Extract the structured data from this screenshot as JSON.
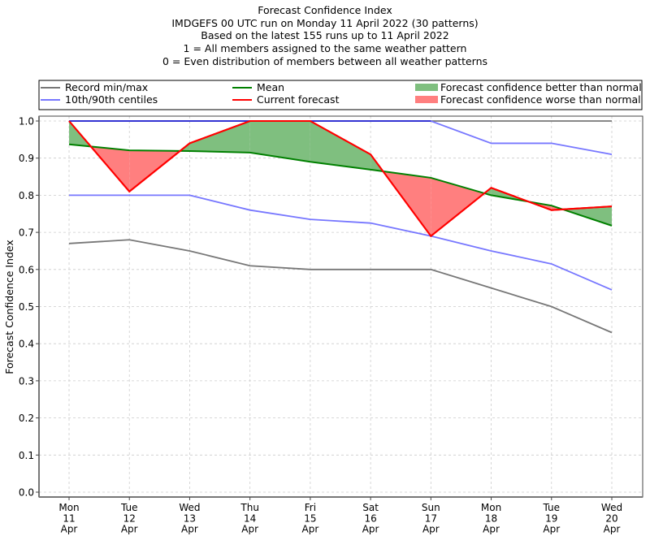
{
  "chart_data": {
    "type": "line",
    "title_lines": [
      "Forecast Confidence Index",
      "IMDGEFS 00 UTC run on Monday 11 April 2022 (30 patterns)",
      "Based on the latest 155 runs up to 11 April 2022",
      "1 = All members assigned to the same weather pattern",
      "0 = Even distribution of members between all weather patterns"
    ],
    "xlabel": "",
    "ylabel": "Forecast Confidence Index",
    "ylim": [
      0.0,
      1.0
    ],
    "yticks": [
      "0.0",
      "0.1",
      "0.2",
      "0.3",
      "0.4",
      "0.5",
      "0.6",
      "0.7",
      "0.8",
      "0.9",
      "1.0"
    ],
    "grid": true,
    "legend_position": "top (above plot, 3 columns)",
    "categories": [
      {
        "day": "Mon",
        "date": "11",
        "month": "Apr"
      },
      {
        "day": "Tue",
        "date": "12",
        "month": "Apr"
      },
      {
        "day": "Wed",
        "date": "13",
        "month": "Apr"
      },
      {
        "day": "Thu",
        "date": "14",
        "month": "Apr"
      },
      {
        "day": "Fri",
        "date": "15",
        "month": "Apr"
      },
      {
        "day": "Sat",
        "date": "16",
        "month": "Apr"
      },
      {
        "day": "Sun",
        "date": "17",
        "month": "Apr"
      },
      {
        "day": "Mon",
        "date": "18",
        "month": "Apr"
      },
      {
        "day": "Tue",
        "date": "19",
        "month": "Apr"
      },
      {
        "day": "Wed",
        "date": "20",
        "month": "Apr"
      }
    ],
    "series": [
      {
        "name": "Record max",
        "legend": "Record min/max",
        "color": "#777777",
        "values": [
          1.0,
          1.0,
          1.0,
          1.0,
          1.0,
          1.0,
          1.0,
          1.0,
          1.0,
          1.0
        ]
      },
      {
        "name": "Record min",
        "legend": "Record min/max",
        "color": "#777777",
        "values": [
          0.67,
          0.68,
          0.65,
          0.61,
          0.6,
          0.6,
          0.6,
          0.55,
          0.5,
          0.43
        ]
      },
      {
        "name": "90th centile",
        "legend": "10th/90th centiles",
        "color": "#7777ff",
        "values": [
          1.0,
          1.0,
          1.0,
          1.0,
          1.0,
          1.0,
          1.0,
          0.94,
          0.94,
          0.91
        ]
      },
      {
        "name": "10th centile",
        "legend": "10th/90th centiles",
        "color": "#7777ff",
        "values": [
          0.8,
          0.8,
          0.8,
          0.76,
          0.735,
          0.725,
          0.69,
          0.65,
          0.615,
          0.545
        ]
      },
      {
        "name": "Mean",
        "legend": "Mean",
        "color": "#008000",
        "values": [
          0.937,
          0.921,
          0.919,
          0.915,
          0.89,
          0.869,
          0.847,
          0.8,
          0.772,
          0.718
        ]
      },
      {
        "name": "Current forecast",
        "legend": "Current forecast",
        "color": "#ff0000",
        "values": [
          1.0,
          0.81,
          0.94,
          1.0,
          1.0,
          0.91,
          0.69,
          0.82,
          0.76,
          0.77
        ]
      }
    ],
    "legend": [
      {
        "label": "Record min/max",
        "kind": "line",
        "color": "#777777"
      },
      {
        "label": "10th/90th centiles",
        "kind": "line",
        "color": "#7777ff"
      },
      {
        "label": "Mean",
        "kind": "line",
        "color": "#008000"
      },
      {
        "label": "Current forecast",
        "kind": "line",
        "color": "#ff0000"
      },
      {
        "label": "Forecast confidence better than normal",
        "kind": "patch",
        "color": "#7fbf7f"
      },
      {
        "label": "Forecast confidence worse than normal",
        "kind": "patch",
        "color": "#ff7f7f"
      }
    ],
    "fill_colors": {
      "better": "#7fbf7f",
      "worse": "#ff7f7f"
    }
  }
}
